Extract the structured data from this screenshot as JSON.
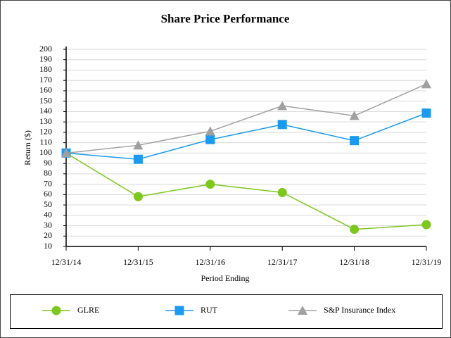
{
  "chart_data": {
    "type": "line",
    "title": "Share Price Performance",
    "x_label": "Period Ending",
    "y_label": "Return ($)",
    "categories": [
      "12/31/14",
      "12/31/15",
      "12/31/16",
      "12/31/17",
      "12/31/18",
      "12/31/19"
    ],
    "series": [
      {
        "name": "GLRE",
        "color": "#7dc71f",
        "marker": "circle",
        "values": [
          100,
          58,
          70,
          62,
          26.5,
          31
        ]
      },
      {
        "name": "RUT",
        "color": "#1a9af0",
        "marker": "square",
        "values": [
          100,
          94,
          113,
          127.5,
          112,
          138.5
        ]
      },
      {
        "name": "S&P Insurance Index",
        "color": "#a0a0a0",
        "marker": "triangle",
        "values": [
          100,
          107.5,
          121,
          145.5,
          136,
          166.5
        ]
      }
    ],
    "ylim": [
      10,
      200
    ],
    "yticks": [
      10,
      20,
      30,
      40,
      50,
      60,
      70,
      80,
      90,
      100,
      110,
      120,
      130,
      140,
      150,
      160,
      170,
      180,
      190,
      200
    ],
    "grid": true,
    "legend": "bottom"
  }
}
